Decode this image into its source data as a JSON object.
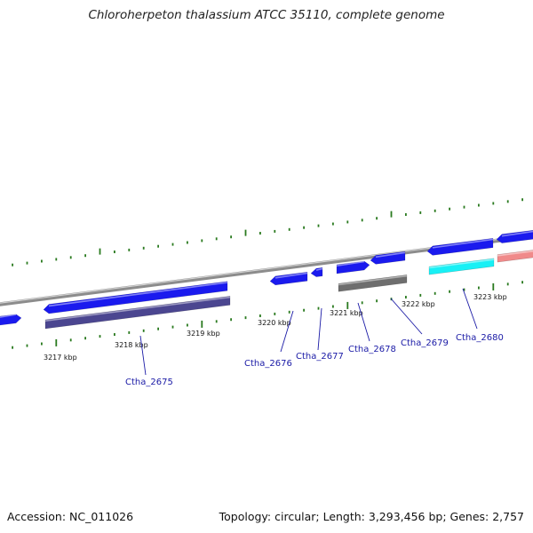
{
  "title": "Chloroherpeton thalassium ATCC 35110, complete genome",
  "footer": {
    "accession": "Accession: NC_011026",
    "topology": "Topology: circular; Length: 3,293,456 bp; Genes: 2,757"
  },
  "colors": {
    "backbone": "#8c8c8c",
    "gene_forward": "#1a1aee",
    "gene_reverse": "#1a1aee",
    "gene_purple": "#4b4690",
    "gene_gray": "#6e6e6e",
    "gene_cyan": "#19f0f5",
    "gene_pink": "#f08a8a",
    "ticks": "#2a7a1f",
    "labels": "#1a1aa6"
  },
  "kbp_ticks": [
    "3217 kbp",
    "3218 kbp",
    "3219 kbp",
    "3220 kbp",
    "3221 kbp",
    "3222 kbp",
    "3223 kbp"
  ],
  "gene_labels": [
    "Ctha_2675",
    "Ctha_2676",
    "Ctha_2677",
    "Ctha_2678",
    "Ctha_2679",
    "Ctha_2680"
  ],
  "features": [
    {
      "name": "gene-left-edge",
      "kind": "cds",
      "color": "gene_forward"
    },
    {
      "name": "gene-ctha-2675",
      "kind": "cds",
      "color": "gene_forward"
    },
    {
      "name": "gene-ctha-2675-product",
      "kind": "product",
      "color": "gene_purple"
    },
    {
      "name": "gene-ctha-2676",
      "kind": "cds",
      "color": "gene_forward"
    },
    {
      "name": "gene-ctha-2677",
      "kind": "cds",
      "color": "gene_forward"
    },
    {
      "name": "gene-ctha-2678",
      "kind": "cds",
      "color": "gene_forward"
    },
    {
      "name": "gene-ctha-2678-product",
      "kind": "product",
      "color": "gene_gray"
    },
    {
      "name": "gene-ctha-2679",
      "kind": "cds",
      "color": "gene_forward"
    },
    {
      "name": "gene-ctha-2680",
      "kind": "cds",
      "color": "gene_forward"
    },
    {
      "name": "gene-ctha-2680-product",
      "kind": "product",
      "color": "gene_cyan"
    },
    {
      "name": "gene-right-edge",
      "kind": "cds",
      "color": "gene_forward"
    },
    {
      "name": "gene-right-edge-product",
      "kind": "product",
      "color": "gene_pink"
    }
  ]
}
